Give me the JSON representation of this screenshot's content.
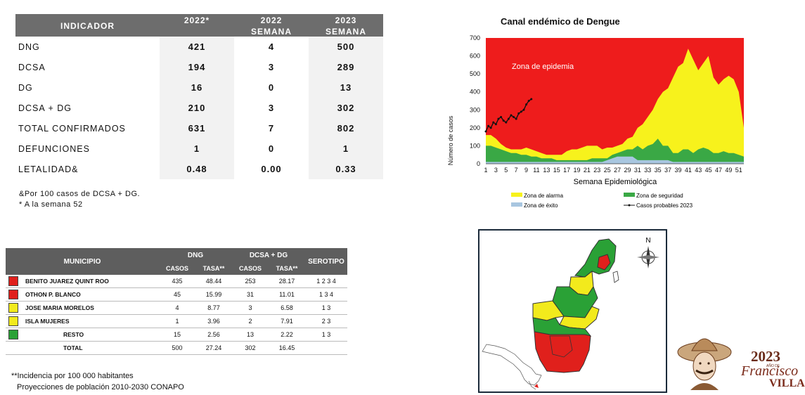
{
  "indicator_table": {
    "headers": {
      "indicador": "INDICADOR",
      "col1": "2022*",
      "col2_line1": "2022",
      "col2_line2": "SEMANA",
      "col3_line1": "2023",
      "col3_line2": "SEMANA"
    },
    "rows": [
      {
        "label": "DNG",
        "v1": "421",
        "v2": "4",
        "v3": "500"
      },
      {
        "label": "DCSA",
        "v1": "194",
        "v2": "3",
        "v3": "289"
      },
      {
        "label": "DG",
        "v1": "16",
        "v2": "0",
        "v3": "13"
      },
      {
        "label": "DCSA + DG",
        "v1": "210",
        "v2": "3",
        "v3": "302"
      },
      {
        "label": "TOTAL CONFIRMADOS",
        "v1": "631",
        "v2": "7",
        "v3": "802"
      },
      {
        "label": "DEFUNCIONES",
        "v1": "1",
        "v2": "0",
        "v3": "1"
      },
      {
        "label": "LETALIDAD&",
        "v1": "0.48",
        "v2": "0.00",
        "v3": "0.33"
      }
    ],
    "note1": "&Por 100 casos de DCSA + DG.",
    "note2": "* A la semana 52"
  },
  "municipal_table": {
    "headers": {
      "municipio": "MUNICIPIO",
      "dng": "DNG",
      "dcsa_dg": "DCSA + DG",
      "serotipo": "SEROTIPO",
      "casos": "CASOS",
      "tasa": "TASA**"
    },
    "rows": [
      {
        "color": "#e0201c",
        "name": "BENITO JUAREZ  QUINT ROO",
        "dng_casos": "435",
        "dng_tasa": "48.44",
        "dcsa_casos": "253",
        "dcsa_tasa": "28.17",
        "serotipo": "1  2  3  4"
      },
      {
        "color": "#e0201c",
        "name": "OTHON P. BLANCO",
        "dng_casos": "45",
        "dng_tasa": "15.99",
        "dcsa_casos": "31",
        "dcsa_tasa": "11.01",
        "serotipo": "1  3  4"
      },
      {
        "color": "#f2ea1c",
        "name": "JOSE MARIA MORELOS",
        "dng_casos": "4",
        "dng_tasa": "8.77",
        "dcsa_casos": "3",
        "dcsa_tasa": "6.58",
        "serotipo": "1  3"
      },
      {
        "color": "#f2ea1c",
        "name": "ISLA MUJERES",
        "dng_casos": "1",
        "dng_tasa": "3.96",
        "dcsa_casos": "2",
        "dcsa_tasa": "7.91",
        "serotipo": "2  3"
      },
      {
        "color": "#2aa136",
        "name": "RESTO",
        "dng_casos": "15",
        "dng_tasa": "2.56",
        "dcsa_casos": "13",
        "dcsa_tasa": "2.22",
        "serotipo": "1  3"
      },
      {
        "color": "",
        "name": "TOTAL",
        "dng_casos": "500",
        "dng_tasa": "27.24",
        "dcsa_casos": "302",
        "dcsa_tasa": "16.45",
        "serotipo": ""
      }
    ],
    "footnote1": "**Incidencia por 100 000 habitantes",
    "footnote2": "Proyecciones de población 2010-2030  CONAPO"
  },
  "chart_data": {
    "type": "area",
    "title": "Canal endémico de Dengue",
    "xlabel": "Semana Epidemiológica",
    "ylabel": "Número de casos",
    "ylim": [
      0,
      700
    ],
    "xlim": [
      1,
      52
    ],
    "yticks": [
      0,
      100,
      200,
      300,
      400,
      500,
      600,
      700
    ],
    "xticks": [
      1,
      3,
      5,
      7,
      9,
      11,
      13,
      15,
      17,
      19,
      21,
      23,
      25,
      27,
      29,
      31,
      33,
      35,
      37,
      39,
      41,
      43,
      45,
      47,
      49,
      51
    ],
    "epidemic_label": "Zona de epidemia",
    "colors": {
      "epidemia": "#ee1c1c",
      "alarma": "#f7f21c",
      "seguridad": "#3aa845",
      "exito": "#a8c6e0",
      "casos": "#111111"
    },
    "weeks": [
      1,
      2,
      3,
      4,
      5,
      6,
      7,
      8,
      9,
      10,
      11,
      12,
      13,
      14,
      15,
      16,
      17,
      18,
      19,
      20,
      21,
      22,
      23,
      24,
      25,
      26,
      27,
      28,
      29,
      30,
      31,
      32,
      33,
      34,
      35,
      36,
      37,
      38,
      39,
      40,
      41,
      42,
      43,
      44,
      45,
      46,
      47,
      48,
      49,
      50,
      51,
      52
    ],
    "alarm_upper": [
      160,
      160,
      140,
      110,
      90,
      80,
      80,
      80,
      90,
      80,
      70,
      60,
      50,
      50,
      50,
      50,
      70,
      80,
      80,
      90,
      100,
      100,
      100,
      80,
      90,
      90,
      100,
      110,
      140,
      150,
      200,
      220,
      260,
      300,
      360,
      400,
      420,
      480,
      540,
      560,
      640,
      580,
      520,
      560,
      600,
      480,
      440,
      470,
      490,
      470,
      400,
      200
    ],
    "security_upper": [
      100,
      100,
      90,
      80,
      70,
      60,
      60,
      50,
      50,
      40,
      40,
      30,
      30,
      30,
      20,
      20,
      20,
      20,
      20,
      20,
      20,
      30,
      30,
      30,
      30,
      50,
      60,
      70,
      80,
      80,
      100,
      80,
      100,
      110,
      140,
      100,
      100,
      60,
      60,
      80,
      80,
      60,
      80,
      90,
      80,
      60,
      60,
      70,
      60,
      60,
      50,
      40
    ],
    "success_upper": [
      10,
      10,
      10,
      10,
      10,
      10,
      10,
      10,
      10,
      10,
      10,
      10,
      10,
      10,
      10,
      10,
      10,
      10,
      10,
      10,
      10,
      10,
      10,
      10,
      20,
      30,
      40,
      40,
      40,
      40,
      20,
      20,
      20,
      20,
      20,
      20,
      20,
      10,
      10,
      10,
      10,
      10,
      10,
      10,
      10,
      10,
      10,
      10,
      10,
      10,
      10,
      10
    ],
    "series": [
      {
        "name": "Casos probables 2023",
        "x": [
          1,
          1.5,
          2,
          2.5,
          3,
          3.5,
          4,
          4.5,
          5,
          5.5,
          6,
          6.5,
          7,
          7.5,
          8,
          8.5,
          9,
          9.5,
          10
        ],
        "values": [
          180,
          210,
          200,
          230,
          220,
          250,
          260,
          240,
          230,
          250,
          270,
          260,
          250,
          280,
          290,
          300,
          330,
          350,
          360
        ]
      }
    ],
    "legend": [
      {
        "name": "Zona de alarma",
        "color": "#f7f21c"
      },
      {
        "name": "Zona de seguridad",
        "color": "#3aa845"
      },
      {
        "name": "Zona de éxito",
        "color": "#a8c6e0"
      },
      {
        "name": "Casos probables 2023",
        "color": "#111111"
      }
    ]
  },
  "map": {
    "north_label": "N"
  },
  "logo": {
    "year": "2023",
    "subtitle": "AÑO DE",
    "name": "Francisco",
    "name2": "VILLA"
  }
}
